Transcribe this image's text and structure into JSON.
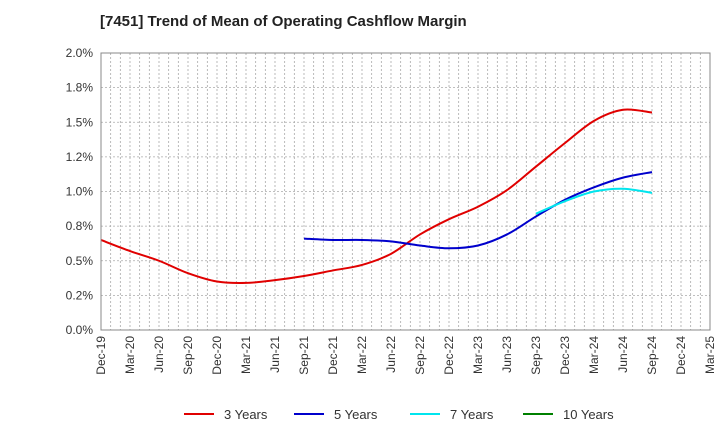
{
  "chart_data": {
    "type": "line",
    "title": "[7451]  Trend of Mean of Operating Cashflow Margin",
    "xlabel": "",
    "ylabel": "",
    "x_ticks": [
      "Dec-19",
      "Mar-20",
      "Jun-20",
      "Sep-20",
      "Dec-20",
      "Mar-21",
      "Jun-21",
      "Sep-21",
      "Dec-21",
      "Mar-22",
      "Jun-22",
      "Sep-22",
      "Dec-22",
      "Mar-23",
      "Jun-23",
      "Sep-23",
      "Dec-23",
      "Mar-24",
      "Jun-24",
      "Sep-24",
      "Dec-24",
      "Mar-25"
    ],
    "y_ticks": [
      "0.0%",
      "0.2%",
      "0.5%",
      "0.8%",
      "1.0%",
      "1.2%",
      "1.5%",
      "1.8%",
      "2.0%"
    ],
    "ylim": [
      0,
      2.0
    ],
    "grid": true,
    "legend_position": "bottom",
    "series": [
      {
        "name": "3 Years",
        "color": "#e00000",
        "x": [
          "Dec-19",
          "Mar-20",
          "Jun-20",
          "Sep-20",
          "Dec-20",
          "Mar-21",
          "Jun-21",
          "Sep-21",
          "Dec-21",
          "Mar-22",
          "Jun-22",
          "Sep-22",
          "Dec-22",
          "Mar-23",
          "Jun-23",
          "Sep-23",
          "Dec-23",
          "Mar-24",
          "Jun-24",
          "Sep-24"
        ],
        "values": [
          0.65,
          0.57,
          0.5,
          0.41,
          0.35,
          0.34,
          0.36,
          0.39,
          0.43,
          0.47,
          0.55,
          0.69,
          0.8,
          0.89,
          1.01,
          1.18,
          1.35,
          1.51,
          1.59,
          1.57
        ]
      },
      {
        "name": "5 Years",
        "color": "#0000cc",
        "x": [
          "Sep-21",
          "Dec-21",
          "Mar-22",
          "Jun-22",
          "Sep-22",
          "Dec-22",
          "Mar-23",
          "Jun-23",
          "Sep-23",
          "Dec-23",
          "Mar-24",
          "Jun-24",
          "Sep-24"
        ],
        "values": [
          0.66,
          0.65,
          0.65,
          0.64,
          0.61,
          0.59,
          0.61,
          0.69,
          0.82,
          0.94,
          1.03,
          1.1,
          1.14
        ]
      },
      {
        "name": "7 Years",
        "color": "#00e5ee",
        "x": [
          "Sep-23",
          "Dec-23",
          "Mar-24",
          "Jun-24",
          "Sep-24"
        ],
        "values": [
          0.84,
          0.93,
          1.0,
          1.02,
          0.99
        ]
      },
      {
        "name": "10 Years",
        "color": "#008000",
        "x": [],
        "values": []
      }
    ]
  }
}
